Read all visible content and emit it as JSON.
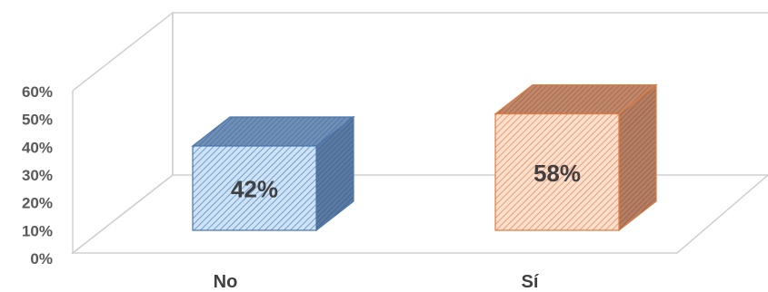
{
  "chart_data": {
    "type": "bar",
    "style": "3d-column",
    "categories": [
      "No",
      "Sí"
    ],
    "values": [
      42,
      58
    ],
    "data_labels": [
      "42%",
      "58%"
    ],
    "y_ticks": [
      "0%",
      "10%",
      "20%",
      "30%",
      "40%",
      "50%",
      "60%"
    ],
    "ylim": [
      0,
      60
    ],
    "grid": false,
    "legend": "none",
    "colors": {
      "No": {
        "front": "#cfe3f7",
        "hatch": "#5b8cc2",
        "side": "#5a7aa3",
        "top": "#6e8fb8",
        "edge": "#4a76ad"
      },
      "Sí": {
        "front": "#fde0cf",
        "hatch": "#ec8a4f",
        "side": "#b57e62",
        "top": "#c0876a",
        "edge": "#e07b3f"
      }
    }
  }
}
